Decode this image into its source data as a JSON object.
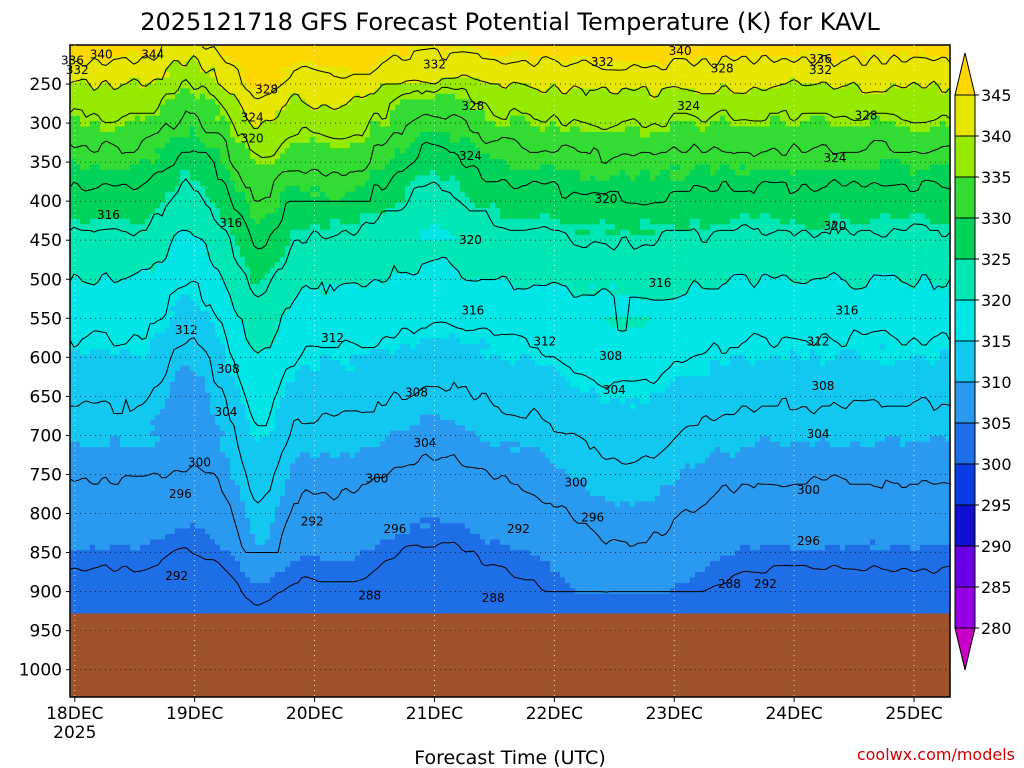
{
  "chart_data": {
    "type": "heatmap",
    "title": "2025121718 GFS Forecast Potential Temperature (K) for KAVL",
    "xlabel": "Forecast Time (UTC)",
    "ylabel": "",
    "x_ticks": [
      "18DEC",
      "19DEC",
      "20DEC",
      "21DEC",
      "22DEC",
      "23DEC",
      "24DEC",
      "25DEC"
    ],
    "x_tick_sublabel": "2025",
    "x_range_days": [
      17.96,
      25.3
    ],
    "y_ticks": [
      250,
      300,
      350,
      400,
      450,
      500,
      550,
      600,
      650,
      700,
      750,
      800,
      850,
      900,
      950,
      1000
    ],
    "y_range_hpa": [
      200,
      1035
    ],
    "surface_pressure_hpa": 928,
    "colorbar": {
      "levels": [
        280,
        285,
        290,
        295,
        300,
        305,
        310,
        315,
        320,
        325,
        330,
        335,
        340,
        345
      ],
      "colors": [
        "#c800c8",
        "#9600e6",
        "#6a00e6",
        "#1010d2",
        "#0a3ce6",
        "#1e6ee8",
        "#2a9af0",
        "#12c8f0",
        "#00e6e6",
        "#00e6b4",
        "#00d25a",
        "#32dc32",
        "#96ea00",
        "#e6e600",
        "#ffd700"
      ]
    },
    "ground_color": "#a0522d",
    "contour_interval": 4,
    "contour_labels": [
      {
        "v": 344,
        "d": 18.65,
        "p": 212
      },
      {
        "v": 340,
        "d": 18.22,
        "p": 212
      },
      {
        "v": 336,
        "d": 17.98,
        "p": 220
      },
      {
        "v": 332,
        "d": 18.02,
        "p": 232
      },
      {
        "v": 328,
        "d": 19.6,
        "p": 257
      },
      {
        "v": 324,
        "d": 19.48,
        "p": 293
      },
      {
        "v": 320,
        "d": 19.48,
        "p": 320
      },
      {
        "v": 316,
        "d": 18.28,
        "p": 418
      },
      {
        "v": 316,
        "d": 19.3,
        "p": 428
      },
      {
        "v": 312,
        "d": 18.93,
        "p": 565
      },
      {
        "v": 308,
        "d": 19.28,
        "p": 615
      },
      {
        "v": 304,
        "d": 19.26,
        "p": 670
      },
      {
        "v": 300,
        "d": 19.04,
        "p": 735
      },
      {
        "v": 296,
        "d": 18.88,
        "p": 775
      },
      {
        "v": 292,
        "d": 18.85,
        "p": 880
      },
      {
        "v": 292,
        "d": 19.98,
        "p": 810
      },
      {
        "v": 288,
        "d": 20.46,
        "p": 905
      },
      {
        "v": 332,
        "d": 21.0,
        "p": 225
      },
      {
        "v": 328,
        "d": 21.32,
        "p": 278
      },
      {
        "v": 324,
        "d": 21.3,
        "p": 342
      },
      {
        "v": 320,
        "d": 21.3,
        "p": 450
      },
      {
        "v": 316,
        "d": 21.32,
        "p": 540
      },
      {
        "v": 312,
        "d": 20.15,
        "p": 575
      },
      {
        "v": 308,
        "d": 20.85,
        "p": 645
      },
      {
        "v": 304,
        "d": 20.92,
        "p": 710
      },
      {
        "v": 300,
        "d": 20.52,
        "p": 755
      },
      {
        "v": 296,
        "d": 20.67,
        "p": 820
      },
      {
        "v": 292,
        "d": 21.7,
        "p": 820
      },
      {
        "v": 288,
        "d": 21.49,
        "p": 908
      },
      {
        "v": 332,
        "d": 22.4,
        "p": 222
      },
      {
        "v": 324,
        "d": 23.12,
        "p": 278
      },
      {
        "v": 320,
        "d": 22.43,
        "p": 397
      },
      {
        "v": 316,
        "d": 22.88,
        "p": 505
      },
      {
        "v": 312,
        "d": 21.92,
        "p": 580
      },
      {
        "v": 308,
        "d": 22.47,
        "p": 598
      },
      {
        "v": 304,
        "d": 22.5,
        "p": 642
      },
      {
        "v": 300,
        "d": 22.18,
        "p": 760
      },
      {
        "v": 296,
        "d": 22.32,
        "p": 805
      },
      {
        "v": 340,
        "d": 23.05,
        "p": 208
      },
      {
        "v": 328,
        "d": 23.4,
        "p": 230
      },
      {
        "v": 336,
        "d": 24.22,
        "p": 218
      },
      {
        "v": 332,
        "d": 24.22,
        "p": 232
      },
      {
        "v": 328,
        "d": 24.6,
        "p": 290
      },
      {
        "v": 324,
        "d": 24.34,
        "p": 345
      },
      {
        "v": 320,
        "d": 24.34,
        "p": 432
      },
      {
        "v": 316,
        "d": 24.44,
        "p": 540
      },
      {
        "v": 312,
        "d": 24.2,
        "p": 580
      },
      {
        "v": 308,
        "d": 24.24,
        "p": 637
      },
      {
        "v": 304,
        "d": 24.2,
        "p": 698
      },
      {
        "v": 300,
        "d": 24.12,
        "p": 770
      },
      {
        "v": 296,
        "d": 24.12,
        "p": 835
      },
      {
        "v": 292,
        "d": 23.76,
        "p": 890
      },
      {
        "v": 288,
        "d": 23.46,
        "p": 890
      }
    ]
  },
  "header": {
    "title": "2025121718 GFS Forecast Potential Temperature (K) for KAVL"
  },
  "footer": {
    "xlabel": "Forecast Time (UTC)",
    "credit": "coolwx.com/models"
  },
  "colorbar_labels": [
    "345",
    "340",
    "335",
    "330",
    "325",
    "320",
    "315",
    "310",
    "305",
    "300",
    "295",
    "290",
    "285",
    "280"
  ]
}
